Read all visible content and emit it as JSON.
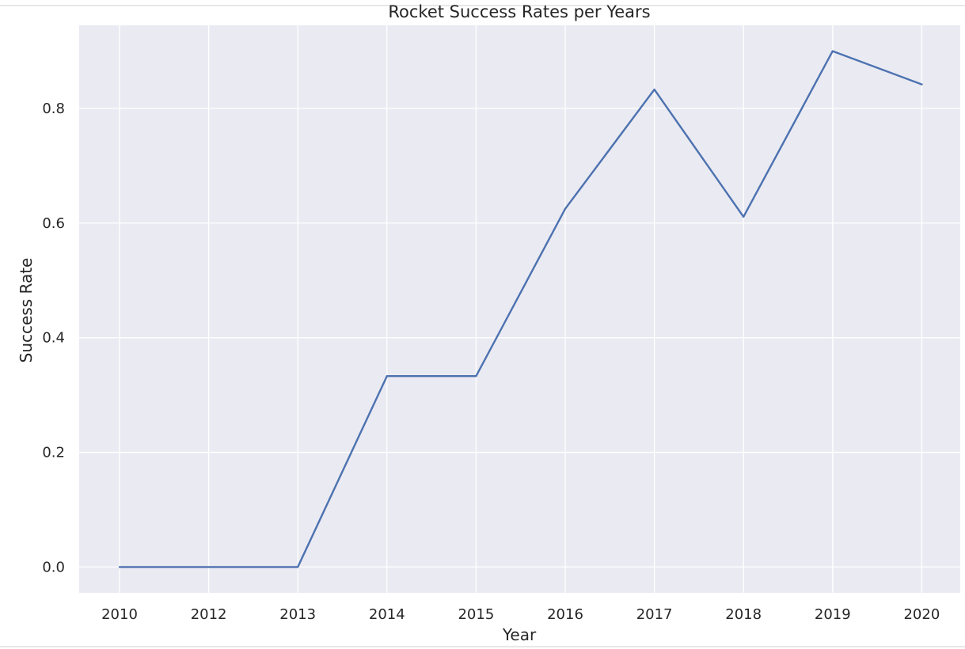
{
  "chart_data": {
    "type": "line",
    "title": "Rocket Success Rates per Years",
    "xlabel": "Year",
    "ylabel": "Success Rate",
    "x": [
      "2010",
      "2012",
      "2013",
      "2014",
      "2015",
      "2016",
      "2017",
      "2018",
      "2019",
      "2020"
    ],
    "series": [
      {
        "color": "#4c72b0",
        "values": [
          0.0,
          0.0,
          0.0,
          0.333,
          0.333,
          0.625,
          0.833,
          0.611,
          0.9,
          0.842
        ]
      }
    ],
    "y_ticks": [
      "0.0",
      "0.2",
      "0.4",
      "0.6",
      "0.8"
    ],
    "ylim": [
      -0.045,
      0.945
    ],
    "grid": true,
    "background_color": "#eaeaf2",
    "grid_color": "#ffffff"
  }
}
